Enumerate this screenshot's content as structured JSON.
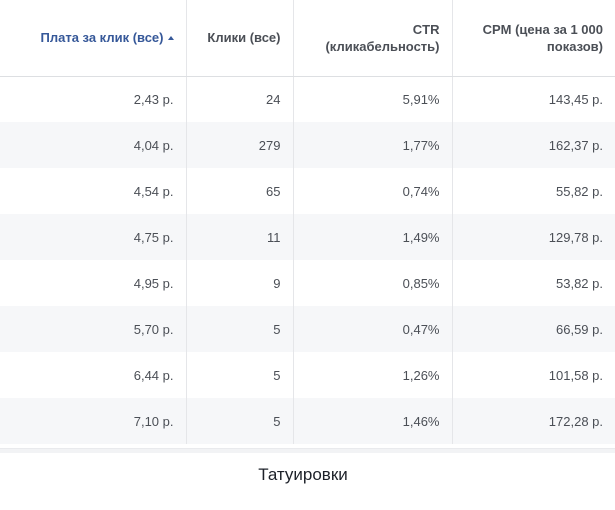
{
  "table": {
    "columns": [
      "Плата за клик (все)",
      "Клики (все)",
      "CTR (кликабельность)",
      "CPM (цена за 1 000 показов)"
    ],
    "sorted_column": "Плата за клик (все)",
    "sort_direction": "ascending",
    "rows": [
      [
        "2,43 р.",
        "24",
        "5,91%",
        "143,45 р."
      ],
      [
        "4,04 р.",
        "279",
        "1,77%",
        "162,37 р."
      ],
      [
        "4,54 р.",
        "65",
        "0,74%",
        "55,82 р."
      ],
      [
        "4,75 р.",
        "11",
        "1,49%",
        "129,78 р."
      ],
      [
        "4,95 р.",
        "9",
        "0,85%",
        "53,82 р."
      ],
      [
        "5,70 р.",
        "5",
        "0,47%",
        "66,59 р."
      ],
      [
        "6,44 р.",
        "5",
        "1,26%",
        "101,58 р."
      ],
      [
        "7,10 р.",
        "5",
        "1,46%",
        "172,28 р."
      ]
    ]
  },
  "caption": "Татуировки",
  "colors": {
    "sorted_header": "#365899",
    "text": "#4b4f56",
    "stripe": "#f6f7f9"
  }
}
